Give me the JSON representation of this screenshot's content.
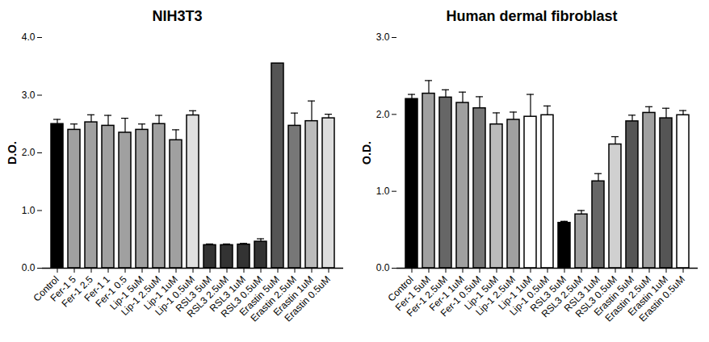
{
  "chart_data": [
    {
      "type": "bar",
      "title": "NIH3T3",
      "y_label": "D.O.",
      "categories": [
        "Control",
        "Fer-1 5",
        "Fer-1 2.5",
        "Fer-1 1",
        "Fer-1 0.5",
        "Lip-1 5uM",
        "Lip-1 2.5uM",
        "Lip-1 1uM",
        "Lip-1 0.5uM",
        "RSL3 5uM",
        "RSL3 2.5uM",
        "RSL3 1uM",
        "RSL3 0.5uM",
        "Erastin 5uM",
        "Erastin 2.5uM",
        "Erastin 1uM",
        "Erastin 0.5uM"
      ],
      "values": [
        2.5,
        2.4,
        2.53,
        2.47,
        2.35,
        2.4,
        2.5,
        2.22,
        2.65,
        0.4,
        0.4,
        0.41,
        0.46,
        3.55,
        2.47,
        2.55,
        2.6
      ],
      "errors": [
        0.08,
        0.1,
        0.13,
        0.18,
        0.25,
        0.1,
        0.15,
        0.18,
        0.08,
        0.02,
        0.02,
        0.02,
        0.05,
        0,
        0.22,
        0.35,
        0.07
      ],
      "colors": [
        "#000000",
        "#a0a0a0",
        "#a0a0a0",
        "#a0a0a0",
        "#a0a0a0",
        "#a0a0a0",
        "#a0a0a0",
        "#a0a0a0",
        "#e0e0e0",
        "#333333",
        "#333333",
        "#333333",
        "#333333",
        "#555555",
        "#777777",
        "#bbbbbb",
        "#dddddd"
      ],
      "ylim": [
        0,
        4
      ],
      "yticks": [
        0,
        1,
        2,
        3,
        4
      ]
    },
    {
      "type": "bar",
      "title": "Human dermal fibroblast",
      "y_label": "O.D.",
      "categories": [
        "Control",
        "Fer-1 5uM",
        "Fer-1 2.5uM",
        "Fer-1 1uM",
        "Fer-1 0.5uM",
        "Lip-1 5uM",
        "Lip-1 2.5uM",
        "Lip-1 1uM",
        "Lip-1 0.5uM",
        "RSL3 5uM",
        "RSL3 2.5uM",
        "RSL3 1uM",
        "RSL3 0.5uM",
        "Erastin 5uM",
        "Erastin 2.5uM",
        "Erastin 1uM",
        "Erastin 0.5uM"
      ],
      "values": [
        2.2,
        2.27,
        2.22,
        2.15,
        2.08,
        1.87,
        1.93,
        1.97,
        1.99,
        0.59,
        0.7,
        1.13,
        1.61,
        1.91,
        2.02,
        1.95,
        1.99
      ],
      "errors": [
        0.06,
        0.17,
        0.1,
        0.14,
        0.15,
        0.15,
        0.1,
        0.29,
        0.12,
        0.02,
        0.05,
        0.1,
        0.1,
        0.08,
        0.08,
        0.13,
        0.06
      ],
      "colors": [
        "#000000",
        "#a0a0a0",
        "#666666",
        "#a0a0a0",
        "#777777",
        "#bbbbbb",
        "#a0a0a0",
        "#ffffff",
        "#ffffff",
        "#000000",
        "#a0a0a0",
        "#666666",
        "#d0d0d0",
        "#555555",
        "#a0a0a0",
        "#555555",
        "#ffffff"
      ],
      "ylim": [
        0,
        3
      ],
      "yticks": [
        0,
        1,
        2,
        3
      ]
    }
  ]
}
